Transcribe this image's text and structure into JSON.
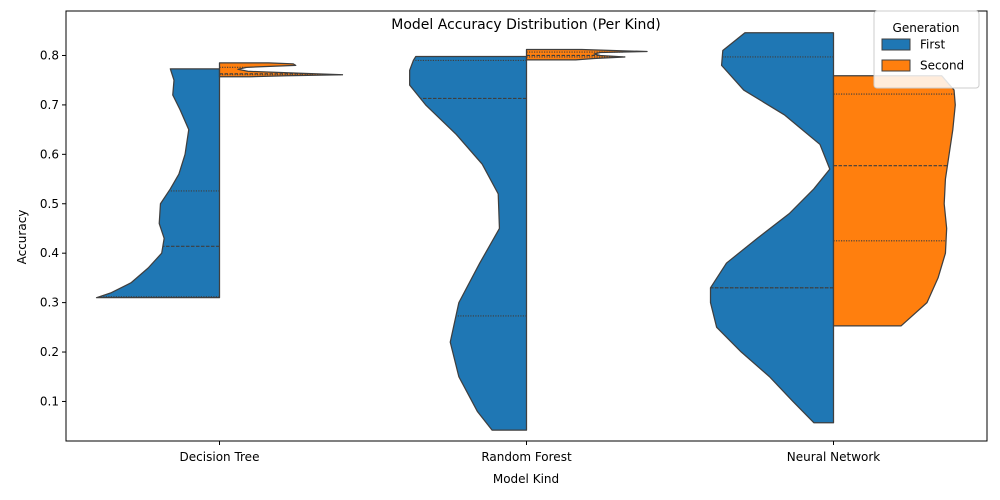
{
  "chart_data": {
    "type": "violin",
    "title": "Model Accuracy Distribution (Per Kind)",
    "xlabel": "Model Kind",
    "ylabel": "Accuracy",
    "categories": [
      "Decision Tree",
      "Random Forest",
      "Neural Network"
    ],
    "ylim": [
      0.02,
      0.89
    ],
    "yticks": [
      0.1,
      0.2,
      0.3,
      0.4,
      0.5,
      0.6,
      0.7,
      0.8
    ],
    "split": true,
    "inner": "quartile",
    "legend": {
      "title": "Generation",
      "position": "upper right",
      "entries": [
        {
          "label": "First",
          "color": "#1f77b4"
        },
        {
          "label": "Second",
          "color": "#ff7f0e"
        }
      ]
    },
    "series": [
      {
        "name": "First",
        "color": "#1f77b4",
        "violins": [
          {
            "category": "Decision Tree",
            "min": 0.31,
            "max": 0.773,
            "quartiles": [
              0.312,
              0.414,
              0.526
            ],
            "profile": [
              [
                0.31,
                1.0
              ],
              [
                0.32,
                0.88
              ],
              [
                0.34,
                0.72
              ],
              [
                0.37,
                0.58
              ],
              [
                0.4,
                0.47
              ],
              [
                0.43,
                0.45
              ],
              [
                0.46,
                0.49
              ],
              [
                0.5,
                0.48
              ],
              [
                0.53,
                0.4
              ],
              [
                0.56,
                0.33
              ],
              [
                0.6,
                0.28
              ],
              [
                0.65,
                0.25
              ],
              [
                0.69,
                0.32
              ],
              [
                0.72,
                0.38
              ],
              [
                0.75,
                0.37
              ],
              [
                0.773,
                0.4
              ]
            ]
          },
          {
            "category": "Random Forest",
            "min": 0.042,
            "max": 0.798,
            "quartiles": [
              0.273,
              0.713,
              0.79
            ],
            "profile": [
              [
                0.042,
                0.28
              ],
              [
                0.08,
                0.4
              ],
              [
                0.15,
                0.55
              ],
              [
                0.22,
                0.62
              ],
              [
                0.3,
                0.55
              ],
              [
                0.38,
                0.38
              ],
              [
                0.45,
                0.22
              ],
              [
                0.52,
                0.23
              ],
              [
                0.58,
                0.36
              ],
              [
                0.64,
                0.57
              ],
              [
                0.7,
                0.82
              ],
              [
                0.74,
                0.95
              ],
              [
                0.77,
                0.95
              ],
              [
                0.79,
                0.92
              ],
              [
                0.798,
                0.9
              ]
            ]
          },
          {
            "category": "Neural Network",
            "min": 0.057,
            "max": 0.846,
            "quartiles": [
              0.33,
              0.33,
              0.797
            ],
            "profile": [
              [
                0.057,
                0.16
              ],
              [
                0.1,
                0.33
              ],
              [
                0.15,
                0.52
              ],
              [
                0.2,
                0.75
              ],
              [
                0.25,
                0.95
              ],
              [
                0.3,
                1.0
              ],
              [
                0.33,
                1.0
              ],
              [
                0.38,
                0.87
              ],
              [
                0.43,
                0.62
              ],
              [
                0.48,
                0.36
              ],
              [
                0.53,
                0.16
              ],
              [
                0.57,
                0.03
              ],
              [
                0.62,
                0.11
              ],
              [
                0.68,
                0.4
              ],
              [
                0.73,
                0.73
              ],
              [
                0.78,
                0.91
              ],
              [
                0.81,
                0.9
              ],
              [
                0.846,
                0.72
              ]
            ]
          }
        ]
      },
      {
        "name": "Second",
        "color": "#ff7f0e",
        "violins": [
          {
            "category": "Decision Tree",
            "min": 0.757,
            "max": 0.785,
            "quartiles": [
              0.761,
              0.763,
              0.776
            ],
            "profile": [
              [
                0.757,
                0.25
              ],
              [
                0.759,
                0.55
              ],
              [
                0.761,
                1.0
              ],
              [
                0.764,
                0.66
              ],
              [
                0.768,
                0.23
              ],
              [
                0.772,
                0.15
              ],
              [
                0.776,
                0.22
              ],
              [
                0.78,
                0.62
              ],
              [
                0.783,
                0.6
              ],
              [
                0.785,
                0.4
              ]
            ]
          },
          {
            "category": "Random Forest",
            "min": 0.791,
            "max": 0.812,
            "quartiles": [
              0.797,
              0.8,
              0.807
            ],
            "profile": [
              [
                0.791,
                0.4
              ],
              [
                0.794,
                0.55
              ],
              [
                0.797,
                0.8
              ],
              [
                0.8,
                0.6
              ],
              [
                0.803,
                0.55
              ],
              [
                0.806,
                0.6
              ],
              [
                0.808,
                0.98
              ],
              [
                0.81,
                0.7
              ],
              [
                0.812,
                0.45
              ]
            ]
          },
          {
            "category": "Neural Network",
            "min": 0.253,
            "max": 0.759,
            "quartiles": [
              0.425,
              0.577,
              0.722
            ],
            "profile": [
              [
                0.253,
                0.55
              ],
              [
                0.3,
                0.76
              ],
              [
                0.35,
                0.85
              ],
              [
                0.4,
                0.91
              ],
              [
                0.45,
                0.92
              ],
              [
                0.5,
                0.9
              ],
              [
                0.55,
                0.91
              ],
              [
                0.6,
                0.94
              ],
              [
                0.65,
                0.97
              ],
              [
                0.7,
                0.99
              ],
              [
                0.73,
                0.98
              ],
              [
                0.759,
                0.88
              ]
            ]
          }
        ]
      }
    ]
  }
}
